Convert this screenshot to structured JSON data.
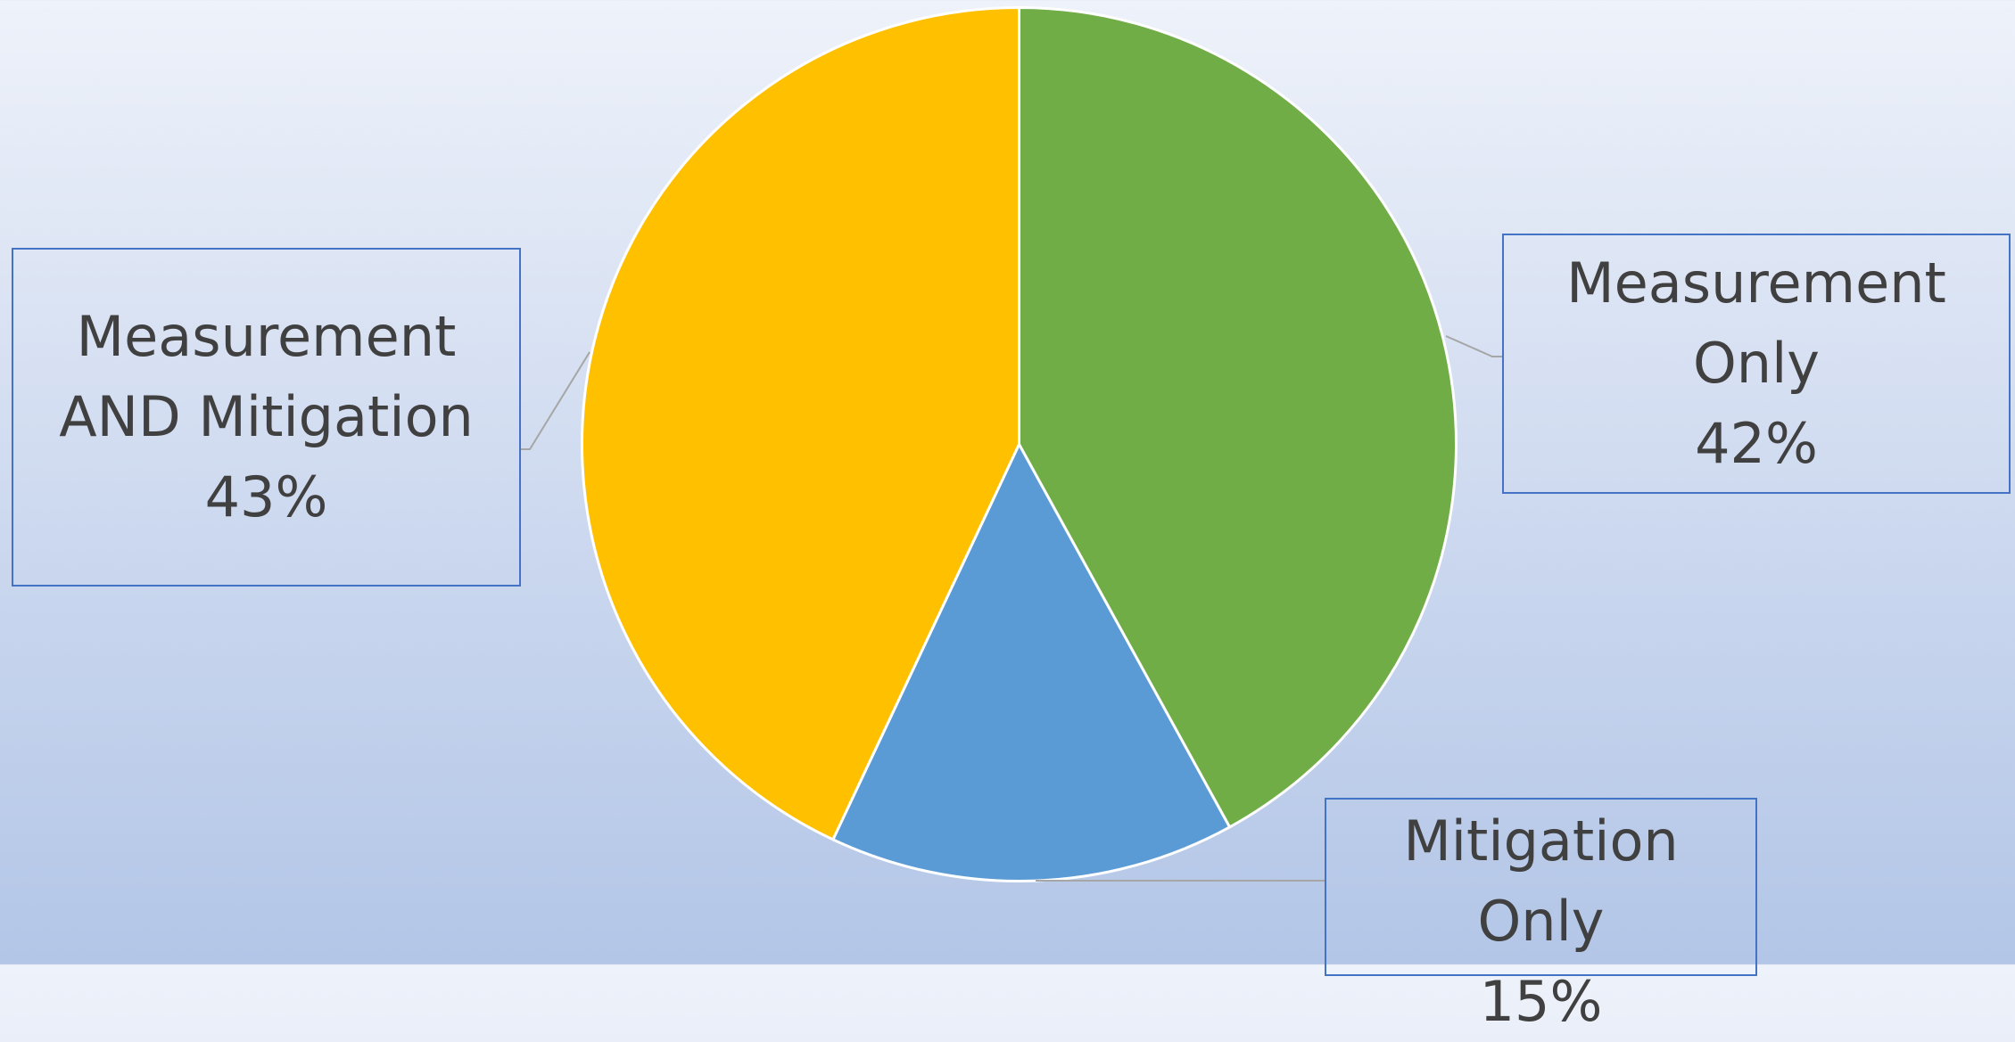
{
  "chart_data": {
    "type": "pie",
    "categories": [
      "Measurement Only",
      "Mitigation Only",
      "Measurement AND Mitigation"
    ],
    "values": [
      42,
      15,
      43
    ],
    "value_labels": [
      "42%",
      "15%",
      "43%"
    ],
    "colors": [
      "#70ad47",
      "#5b9bd5",
      "#ffc000"
    ]
  }
}
